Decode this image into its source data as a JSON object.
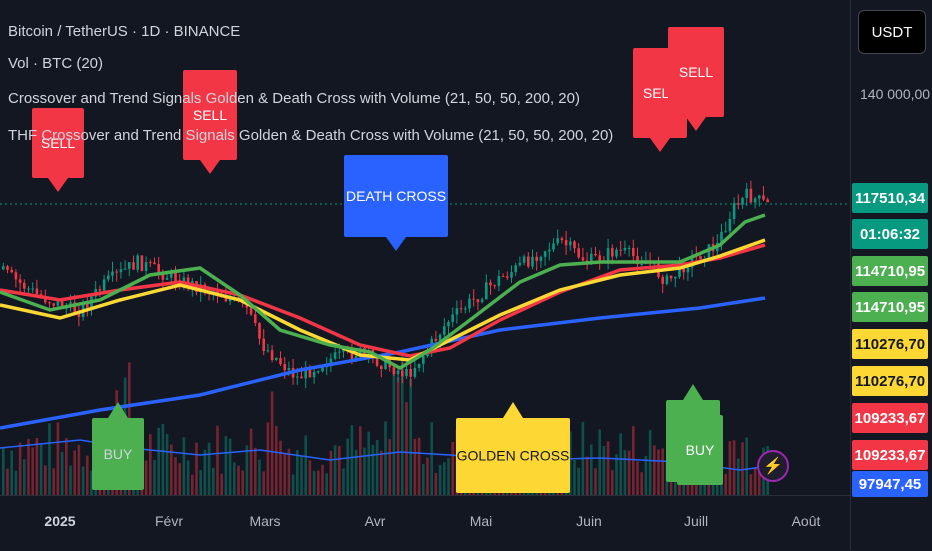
{
  "header": {
    "symbol_line": "Bitcoin / TetherUS · 1D · BINANCE",
    "vol_line": "Vol · BTC (20)",
    "indicator1": "Crossover and Trend Signals Golden & Death Cross with Volume (21, 50, 50, 200, 20)",
    "indicator2": "THF Crossover and Trend Signals Golden & Death Cross with Volume (21, 50, 50, 200, 20)"
  },
  "currency_button": "USDT",
  "price_scale": {
    "ticks": [
      "140 000,00"
    ],
    "tags": [
      {
        "text": "117510,34",
        "bg": "#089981",
        "fg": "#ffffff"
      },
      {
        "text": "01:06:32",
        "bg": "#089981",
        "fg": "#ffffff"
      },
      {
        "text": "114710,95",
        "bg": "#4caf50",
        "fg": "#ffffff"
      },
      {
        "text": "114710,95",
        "bg": "#4caf50",
        "fg": "#ffffff"
      },
      {
        "text": "110276,70",
        "bg": "#fdd835",
        "fg": "#131722"
      },
      {
        "text": "110276,70",
        "bg": "#fdd835",
        "fg": "#131722"
      },
      {
        "text": "109233,67",
        "bg": "#f23645",
        "fg": "#ffffff"
      },
      {
        "text": "109233,67",
        "bg": "#f23645",
        "fg": "#ffffff"
      },
      {
        "text": "97947,45",
        "bg": "#2962ff",
        "fg": "#ffffff"
      }
    ]
  },
  "time_axis": [
    "2025",
    "Févr",
    "Mars",
    "Avr",
    "Mai",
    "Juin",
    "Juill",
    "Août"
  ],
  "signals": {
    "sell": "SELL",
    "buy": "BUY",
    "death_cross": "DEATH CROSS",
    "golden_cross": "GOLDEN CROSS"
  },
  "colors": {
    "background": "#131722",
    "ma_green": "#4caf50",
    "ma_yellow": "#fdd835",
    "ma_red": "#f23645",
    "ma_blue": "#2962ff",
    "sell_label": "#f23645",
    "buy_label": "#4caf50",
    "death_cross_label": "#2962ff",
    "golden_cross_label": "#fdd835",
    "candle_up": "#089981",
    "candle_down": "#f23645"
  },
  "icons": {
    "alert": "lightning-bolt-icon"
  }
}
